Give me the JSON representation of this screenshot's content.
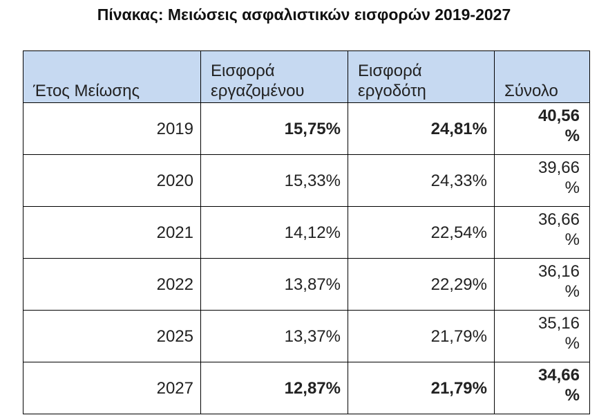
{
  "title": "Πίνακας: Μειώσεις ασφαλιστικών εισφορών 2019-2027",
  "table": {
    "header": [
      "Έτος Μείωσης",
      "Εισφορά εργαζομένου",
      "Εισφορά εργοδότη",
      "Σύνολο"
    ],
    "rows": [
      [
        "2019",
        "15,75%",
        "24,81%",
        "40,56 %"
      ],
      [
        "2020",
        "15,33%",
        "24,33%",
        "39,66 %"
      ],
      [
        "2021",
        "14,12%",
        "22,54%",
        "36,66 %"
      ],
      [
        "2022",
        "13,87%",
        "22,29%",
        "36,16 %"
      ],
      [
        "2025",
        "13,37%",
        "21,79%",
        "35,16 %"
      ],
      [
        "2027",
        "12,87%",
        "21,79%",
        "34,66 %"
      ]
    ],
    "bold_rows": [
      0,
      5
    ]
  }
}
